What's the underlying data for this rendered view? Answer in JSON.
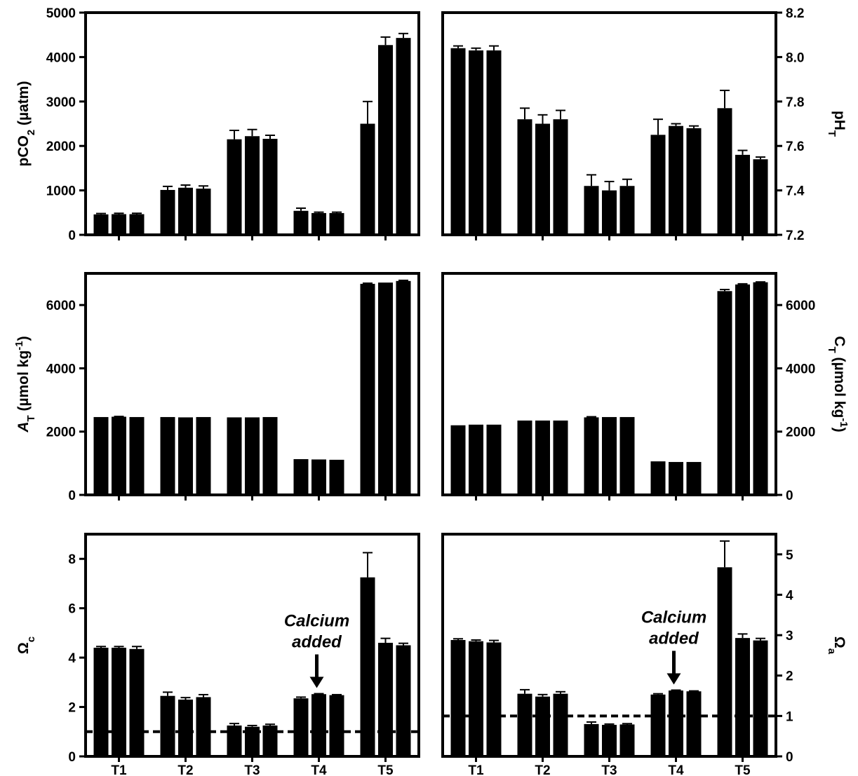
{
  "chart_data": [
    {
      "type": "bar",
      "ylabel": "pCO2 (µatm)",
      "ylabel_main": "pCO",
      "ylabel_sub": "2",
      "ylabel_rest": " (µatm)",
      "ylim": [
        0,
        5000
      ],
      "yticks": [
        0,
        1000,
        2000,
        3000,
        4000,
        5000
      ],
      "categories": [
        "T1",
        "T2",
        "T3",
        "T4",
        "T5"
      ],
      "values": [
        [
          460,
          465,
          465
        ],
        [
          1010,
          1060,
          1040
        ],
        [
          2150,
          2220,
          2160
        ],
        [
          540,
          490,
          490
        ],
        [
          2500,
          4270,
          4430
        ]
      ],
      "errors": [
        [
          20,
          20,
          20
        ],
        [
          80,
          60,
          60
        ],
        [
          200,
          150,
          80
        ],
        [
          60,
          20,
          20
        ],
        [
          500,
          180,
          100
        ]
      ]
    },
    {
      "type": "bar",
      "ylabel": "pHT",
      "ylabel_main": "pH",
      "ylabel_sub": "T",
      "ylim": [
        7.2,
        8.2
      ],
      "yticks": [
        7.2,
        7.4,
        7.6,
        7.8,
        8.0,
        8.2
      ],
      "tick_decimals": 1,
      "categories": [
        "T1",
        "T2",
        "T3",
        "T4",
        "T5"
      ],
      "values": [
        [
          8.04,
          8.03,
          8.03
        ],
        [
          7.72,
          7.7,
          7.72
        ],
        [
          7.42,
          7.4,
          7.42
        ],
        [
          7.65,
          7.69,
          7.68
        ],
        [
          7.77,
          7.56,
          7.54
        ]
      ],
      "errors": [
        [
          0.01,
          0.01,
          0.02
        ],
        [
          0.05,
          0.04,
          0.04
        ],
        [
          0.05,
          0.04,
          0.03
        ],
        [
          0.07,
          0.01,
          0.01
        ],
        [
          0.08,
          0.02,
          0.01
        ]
      ]
    },
    {
      "type": "bar",
      "ylabel": "AT (µmol kg-1)",
      "ylabel_main": "A",
      "ylabel_sub": "T",
      "ylabel_rest": " (µmol kg",
      "ylabel_sup": "-1",
      "ylabel_end": ")",
      "ylim": [
        0,
        7000
      ],
      "yticks": [
        0,
        2000,
        4000,
        6000
      ],
      "categories": [
        "T1",
        "T2",
        "T3",
        "T4",
        "T5"
      ],
      "values": [
        [
          2460,
          2470,
          2460
        ],
        [
          2460,
          2450,
          2460
        ],
        [
          2450,
          2450,
          2460
        ],
        [
          1130,
          1120,
          1110
        ],
        [
          6670,
          6710,
          6760
        ]
      ],
      "errors": [
        [
          0,
          10,
          0
        ],
        [
          0,
          0,
          0
        ],
        [
          0,
          0,
          0
        ],
        [
          0,
          0,
          0
        ],
        [
          20,
          0,
          20
        ]
      ]
    },
    {
      "type": "bar",
      "ylabel": "CT (µmol kg-1)",
      "ylabel_main": "C",
      "ylabel_sub": "T",
      "ylabel_rest": " (µmol kg",
      "ylabel_sup": "-1",
      "ylabel_end": ")",
      "ylim": [
        0,
        7000
      ],
      "yticks": [
        0,
        2000,
        4000,
        6000
      ],
      "categories": [
        "T1",
        "T2",
        "T3",
        "T4",
        "T5"
      ],
      "values": [
        [
          2200,
          2220,
          2220
        ],
        [
          2350,
          2350,
          2350
        ],
        [
          2450,
          2460,
          2460
        ],
        [
          1060,
          1040,
          1040
        ],
        [
          6440,
          6650,
          6720
        ]
      ],
      "errors": [
        [
          0,
          0,
          0
        ],
        [
          0,
          0,
          0
        ],
        [
          20,
          0,
          0
        ],
        [
          0,
          0,
          0
        ],
        [
          50,
          20,
          10
        ]
      ]
    },
    {
      "type": "bar",
      "ylabel": "Ωc",
      "ylabel_main": "Ω",
      "ylabel_sub": "c",
      "ylim": [
        0,
        9
      ],
      "yticks": [
        0,
        2,
        4,
        6,
        8
      ],
      "categories": [
        "T1",
        "T2",
        "T3",
        "T4",
        "T5"
      ],
      "values": [
        [
          4.4,
          4.4,
          4.35
        ],
        [
          2.45,
          2.3,
          2.4
        ],
        [
          1.25,
          1.2,
          1.25
        ],
        [
          2.35,
          2.52,
          2.48
        ],
        [
          7.25,
          4.6,
          4.5
        ]
      ],
      "errors": [
        [
          0.05,
          0.05,
          0.1
        ],
        [
          0.15,
          0.08,
          0.1
        ],
        [
          0.08,
          0.05,
          0.05
        ],
        [
          0.05,
          0.02,
          0.02
        ],
        [
          1.0,
          0.18,
          0.08
        ]
      ],
      "reference_line": 1.0,
      "annotation": {
        "line1": "Calcium",
        "line2": "added",
        "category_index": 3
      }
    },
    {
      "type": "bar",
      "ylabel": "Ωa",
      "ylabel_main": "Ω",
      "ylabel_sub": "a",
      "ylim": [
        0,
        5.5
      ],
      "yticks": [
        0,
        1,
        2,
        3,
        4,
        5
      ],
      "categories": [
        "T1",
        "T2",
        "T3",
        "T4",
        "T5"
      ],
      "values": [
        [
          2.88,
          2.85,
          2.82
        ],
        [
          1.55,
          1.48,
          1.55
        ],
        [
          0.8,
          0.78,
          0.79
        ],
        [
          1.53,
          1.63,
          1.61
        ],
        [
          4.68,
          2.93,
          2.87
        ]
      ],
      "errors": [
        [
          0.03,
          0.03,
          0.05
        ],
        [
          0.1,
          0.05,
          0.05
        ],
        [
          0.05,
          0.02,
          0.02
        ],
        [
          0.02,
          0.01,
          0.01
        ],
        [
          0.65,
          0.1,
          0.05
        ]
      ],
      "reference_line": 1.0,
      "annotation": {
        "line1": "Calcium",
        "line2": "added",
        "category_index": 3
      }
    }
  ]
}
